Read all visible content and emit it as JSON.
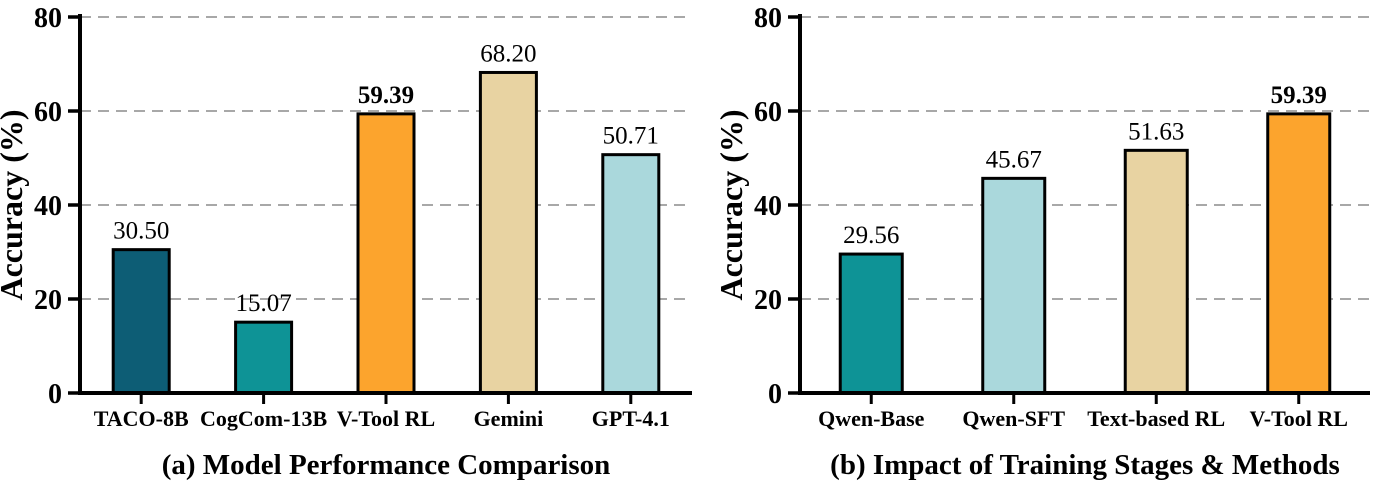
{
  "figure": {
    "axis_color": "#000000",
    "grid_color": "#a8a8a8",
    "background": "#ffffff",
    "ylabel": "Accuracy (%)"
  },
  "chart_data": [
    {
      "type": "bar",
      "title": "(a) Model Performance Comparison",
      "ylabel": "Accuracy (%)",
      "xlabel": "",
      "ylim": [
        0,
        80
      ],
      "yticks": [
        0,
        20,
        40,
        60,
        80
      ],
      "grid": "horizontal-dashed",
      "legend": "none",
      "categories": [
        "TACO-8B",
        "CogCom-13B",
        "V-Tool RL",
        "Gemini",
        "GPT-4.1"
      ],
      "values": [
        30.5,
        15.07,
        59.39,
        68.2,
        50.71
      ],
      "value_labels": [
        "30.50",
        "15.07",
        "59.39",
        "68.20",
        "50.71"
      ],
      "bold_value_labels": [
        false,
        false,
        true,
        false,
        false
      ],
      "bar_colors": [
        "#0d5d75",
        "#0e9396",
        "#fca42d",
        "#e8d3a2",
        "#aad8dc"
      ]
    },
    {
      "type": "bar",
      "title": "(b) Impact of Training Stages & Methods",
      "ylabel": "Accuracy (%)",
      "xlabel": "",
      "ylim": [
        0,
        80
      ],
      "yticks": [
        0,
        20,
        40,
        60,
        80
      ],
      "grid": "horizontal-dashed",
      "legend": "none",
      "categories": [
        "Qwen-Base",
        "Qwen-SFT",
        "Text-based RL",
        "V-Tool RL"
      ],
      "values": [
        29.56,
        45.67,
        51.63,
        59.39
      ],
      "value_labels": [
        "29.56",
        "45.67",
        "51.63",
        "59.39"
      ],
      "bold_value_labels": [
        false,
        false,
        false,
        true
      ],
      "bar_colors": [
        "#0e9396",
        "#aad8dc",
        "#e8d3a2",
        "#fca42d"
      ]
    }
  ]
}
